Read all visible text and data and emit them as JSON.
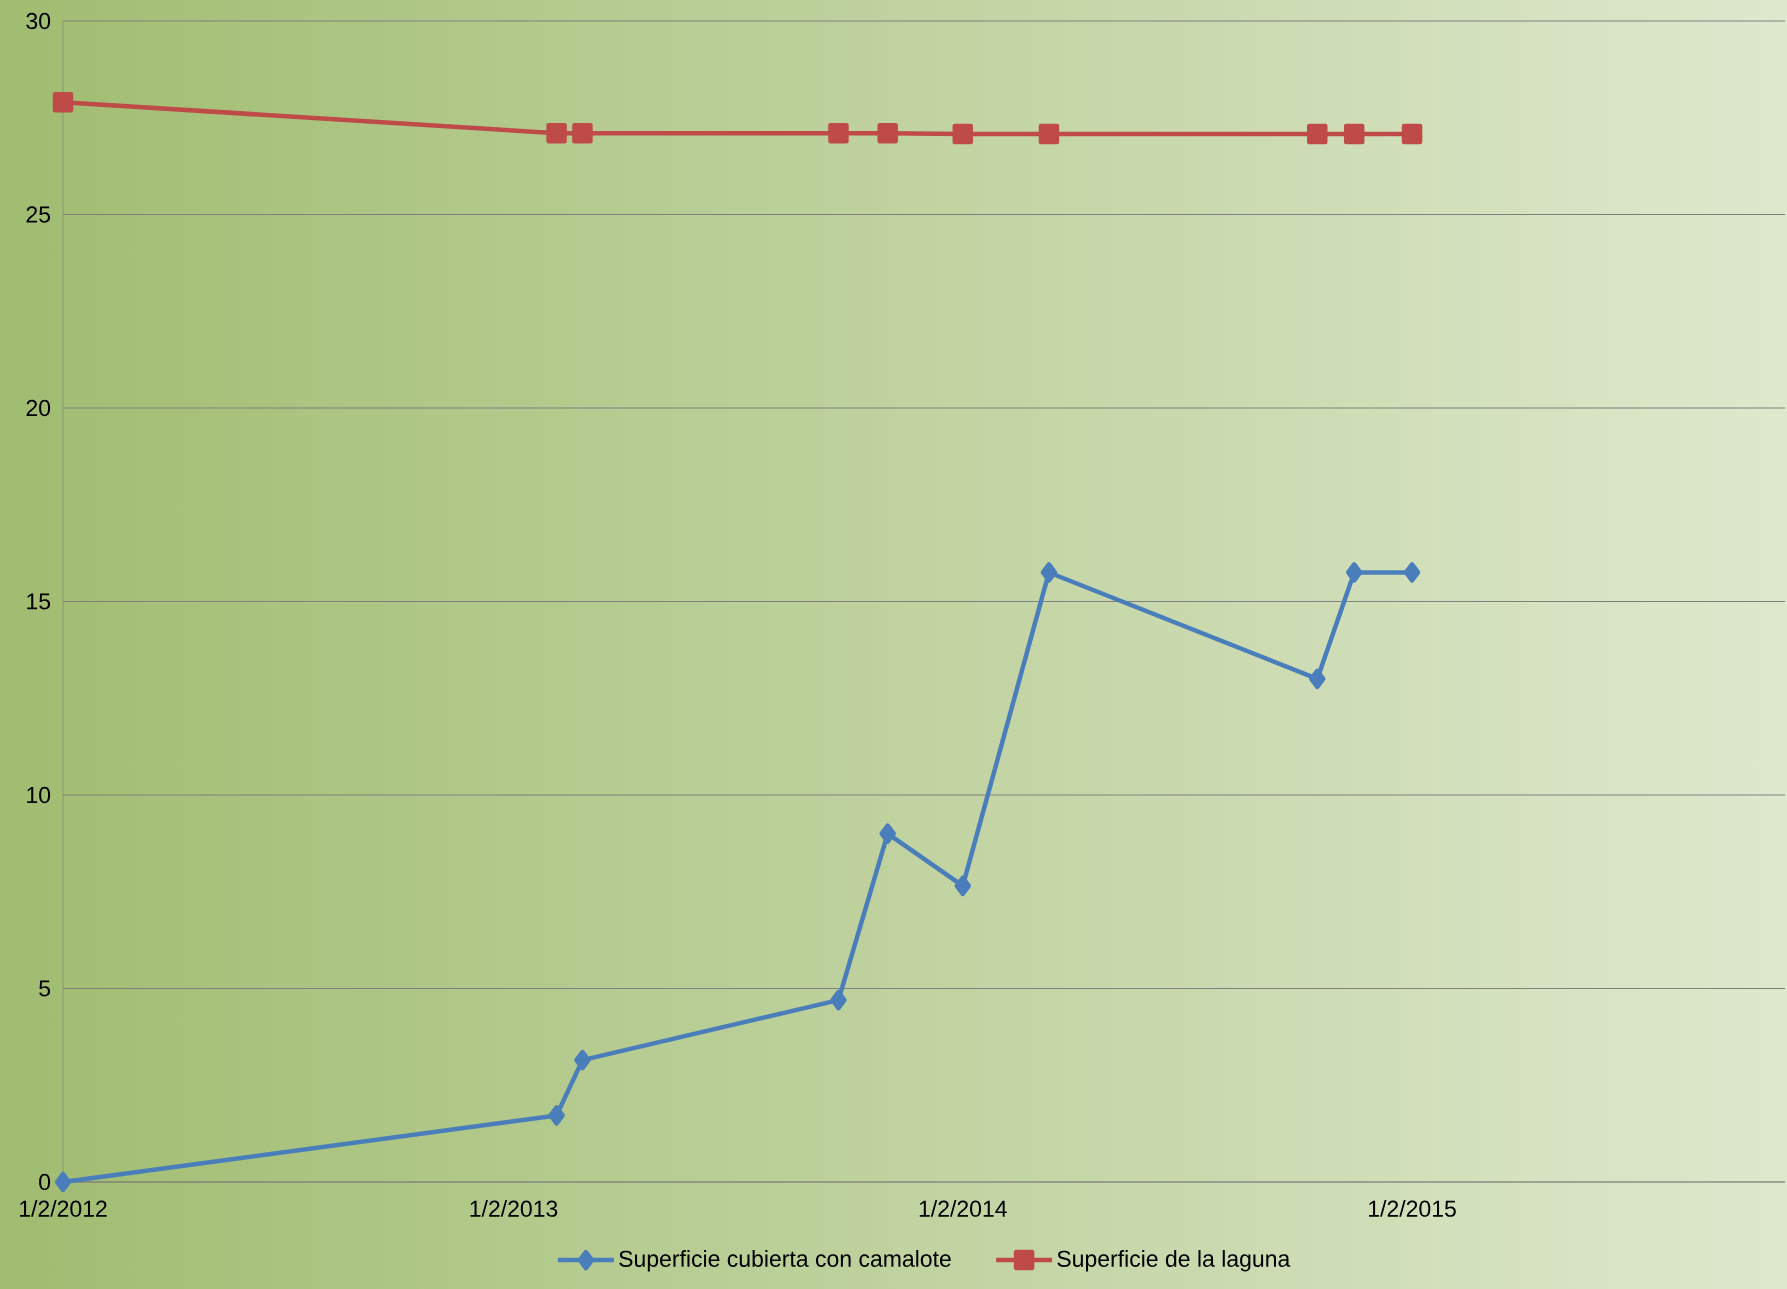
{
  "chart_data": {
    "type": "line",
    "x": [
      "2012-02-01",
      "2013-03-08",
      "2013-03-29",
      "2013-10-23",
      "2013-12-02",
      "2014-02-01",
      "2014-04-12",
      "2014-11-16",
      "2014-12-16",
      "2015-02-01"
    ],
    "series": [
      {
        "name": "Superficie cubierta con camalote",
        "color": "#4a7ebb",
        "marker": "diamond",
        "values": [
          0,
          1.72,
          3.15,
          4.7,
          9.0,
          7.65,
          15.75,
          13.0,
          15.75,
          15.75
        ]
      },
      {
        "name": "Superficie de la laguna",
        "color": "#be4b48",
        "marker": "square",
        "values": [
          27.9,
          27.1,
          27.1,
          27.1,
          27.1,
          27.08,
          27.08,
          27.08,
          27.08,
          27.08
        ]
      }
    ],
    "xlim": [
      "2012-02-01",
      "2015-12-01"
    ],
    "xticks": [
      {
        "value": "2012-02-01",
        "label": "1/2/2012"
      },
      {
        "value": "2013-02-01",
        "label": "1/2/2013"
      },
      {
        "value": "2014-02-01",
        "label": "1/2/2014"
      },
      {
        "value": "2015-02-01",
        "label": "1/2/2015"
      }
    ],
    "ylim": [
      0,
      30
    ],
    "yticks": [
      0,
      5,
      10,
      15,
      20,
      25,
      30
    ],
    "grid": "y",
    "legend": "bottom",
    "line_style": "solid"
  }
}
